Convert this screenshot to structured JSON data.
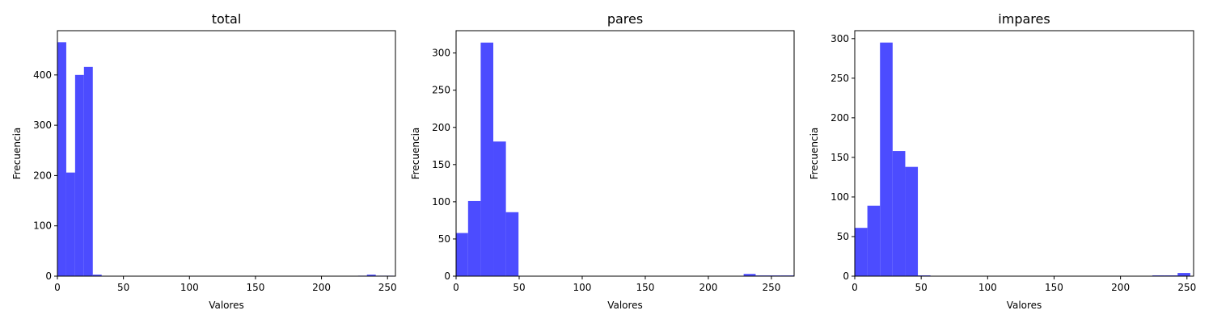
{
  "chart_data": [
    {
      "type": "bar",
      "title": "total",
      "xlabel": "Valores",
      "ylabel": "Frecuencia",
      "xlim": [
        0,
        256
      ],
      "ylim": [
        0,
        488
      ],
      "xticks": [
        0,
        50,
        100,
        150,
        200,
        250
      ],
      "yticks": [
        0,
        100,
        200,
        300,
        400
      ],
      "color": "#4c4cff",
      "bins": [
        {
          "x0": 0,
          "x1": 6.7,
          "value": 465
        },
        {
          "x0": 6.7,
          "x1": 13.4,
          "value": 206
        },
        {
          "x0": 13.4,
          "x1": 20.1,
          "value": 400
        },
        {
          "x0": 20.1,
          "x1": 26.8,
          "value": 416
        },
        {
          "x0": 26.8,
          "x1": 33.5,
          "value": 3
        },
        {
          "x0": 227.7,
          "x1": 234.4,
          "value": 1
        },
        {
          "x0": 234.4,
          "x1": 241.1,
          "value": 3
        },
        {
          "x0": 241.1,
          "x1": 247.8,
          "value": 1
        },
        {
          "x0": 247.8,
          "x1": 254.5,
          "value": 1
        }
      ]
    },
    {
      "type": "bar",
      "title": "pares",
      "xlabel": "Valores",
      "ylabel": "Frecuencia",
      "xlim": [
        0,
        268
      ],
      "ylim": [
        0,
        330
      ],
      "xticks": [
        0,
        50,
        100,
        150,
        200,
        250
      ],
      "yticks": [
        0,
        50,
        100,
        150,
        200,
        250,
        300
      ],
      "color": "#4c4cff",
      "bins": [
        {
          "x0": 0,
          "x1": 9.5,
          "value": 58
        },
        {
          "x0": 9.5,
          "x1": 19.5,
          "value": 101
        },
        {
          "x0": 19.5,
          "x1": 29.5,
          "value": 314
        },
        {
          "x0": 29.5,
          "x1": 39.5,
          "value": 181
        },
        {
          "x0": 39.5,
          "x1": 49.5,
          "value": 86
        },
        {
          "x0": 228,
          "x1": 237.5,
          "value": 3
        },
        {
          "x0": 237.5,
          "x1": 247.5,
          "value": 1
        },
        {
          "x0": 247.5,
          "x1": 257.5,
          "value": 1
        },
        {
          "x0": 257.5,
          "x1": 268,
          "value": 1
        }
      ]
    },
    {
      "type": "bar",
      "title": "impares",
      "xlabel": "Valores",
      "ylabel": "Frecuencia",
      "xlim": [
        0,
        255
      ],
      "ylim": [
        0,
        310
      ],
      "xticks": [
        0,
        50,
        100,
        150,
        200,
        250
      ],
      "yticks": [
        0,
        50,
        100,
        150,
        200,
        250,
        300
      ],
      "color": "#4c4cff",
      "bins": [
        {
          "x0": 0,
          "x1": 9.5,
          "value": 61
        },
        {
          "x0": 9.5,
          "x1": 19,
          "value": 89
        },
        {
          "x0": 19,
          "x1": 28.5,
          "value": 295
        },
        {
          "x0": 28.5,
          "x1": 38,
          "value": 158
        },
        {
          "x0": 38,
          "x1": 47.5,
          "value": 138
        },
        {
          "x0": 47.5,
          "x1": 57,
          "value": 1
        },
        {
          "x0": 224,
          "x1": 233.5,
          "value": 1
        },
        {
          "x0": 233.5,
          "x1": 243,
          "value": 1
        },
        {
          "x0": 243,
          "x1": 252.5,
          "value": 4
        }
      ]
    }
  ]
}
